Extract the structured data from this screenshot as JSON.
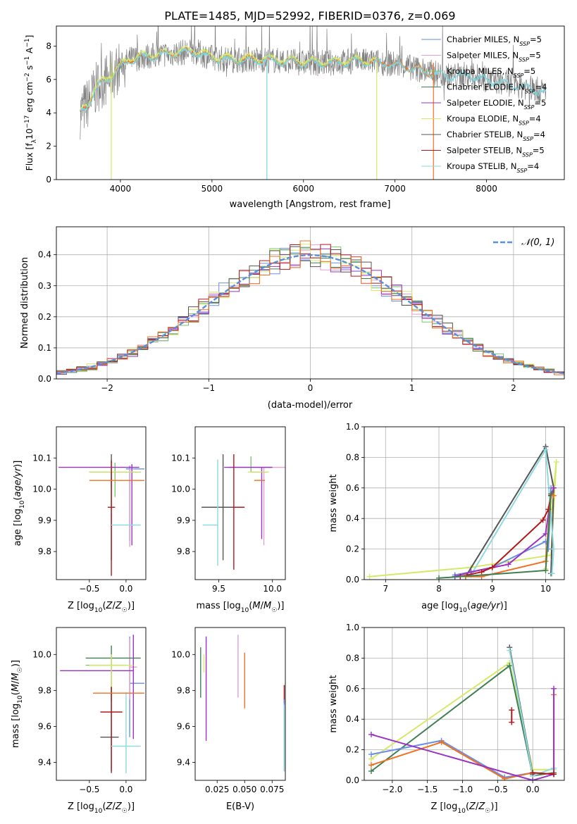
{
  "figure_title": "PLATE=1485, MJD=52992, FIBERID=0376, z=0.069",
  "model_colors": {
    "Chabrier MILES": "#6a8fe8",
    "Salpeter MILES": "#e0a0d8",
    "Kroupa MILES": "#7fc66f",
    "Chabrier ELODIE": "#3f7f54",
    "Salpeter ELODIE": "#9a33c4",
    "Kroupa ELODIE": "#d6e86a",
    "Chabrier STELIB": "#555555",
    "Salpeter STELIB": "#b3171b",
    "Kroupa STELIB": "#8fd9e0",
    "data": "#808080",
    "fit_orange": "#f07020",
    "fit_cyan": "#7fd4dc"
  },
  "chart_data": [
    {
      "id": "spectrum",
      "type": "line",
      "xlabel": "wavelength [Angstrom, rest frame]",
      "ylabel": "Flux [f_λ10^-17 erg cm^-2 s^-1 A^-1]",
      "xlim": [
        3300,
        8850
      ],
      "ylim": [
        0,
        9.2
      ],
      "xticks": [
        4000,
        5000,
        6000,
        7000,
        8000
      ],
      "yticks": [
        0,
        2,
        4,
        6,
        8
      ],
      "legend_position": "right",
      "legend": [
        "Chabrier MILES, N_SSP=5",
        "Salpeter MILES, N_SSP=5",
        "Kroupa MILES, N_SSP=5",
        "Chabrier ELODIE, N_SSP=4",
        "Salpeter ELODIE, N_SSP=5",
        "Kroupa ELODIE, N_SSP=4",
        "Chabrier STELIB, N_SSP=4",
        "Salpeter STELIB, N_SSP=5",
        "Kroupa STELIB, N_SSP=4"
      ],
      "continuum": {
        "x": [
          3560,
          3650,
          3750,
          3900,
          4000,
          4100,
          4300,
          4500,
          4800,
          5000,
          5200,
          5500,
          5800,
          6000,
          6300,
          6600,
          6900,
          7200,
          7400,
          7600,
          7800,
          8000,
          8200,
          8400,
          8600
        ],
        "y": [
          4.0,
          4.6,
          5.6,
          6.2,
          6.8,
          7.2,
          7.4,
          7.5,
          7.7,
          7.3,
          7.2,
          7.2,
          7.1,
          7.0,
          7.0,
          7.1,
          7.0,
          6.7,
          6.4,
          6.2,
          6.3,
          6.0,
          5.8,
          5.6,
          5.3
        ]
      }
    },
    {
      "id": "residuals",
      "type": "line",
      "xlabel": "(data-model)/error",
      "ylabel": "Normed distribution",
      "xlim": [
        -2.5,
        2.5
      ],
      "ylim": [
        0,
        0.49
      ],
      "xticks": [
        -2,
        -1,
        0,
        1,
        2
      ],
      "yticks": [
        0.0,
        0.1,
        0.2,
        0.3,
        0.4
      ],
      "grid": true,
      "legend_position": "top-right",
      "legend": [
        "𝒩(0, 1)"
      ],
      "reference": "standard normal density"
    },
    {
      "id": "z-age",
      "type": "scatter",
      "xlabel": "Z [log10(Z/Z☉)]",
      "ylabel": "age  [log10(age/yr)]",
      "xlim": [
        -0.95,
        0.27
      ],
      "ylim": [
        9.71,
        10.2
      ],
      "xticks": [
        -0.5,
        0.0
      ],
      "yticks": [
        9.8,
        9.9,
        10.0,
        10.1
      ],
      "points": [
        {
          "model": "Chabrier MILES",
          "x": 0.05,
          "y": 10.065,
          "xerr": [
            0.05,
            0.2
          ],
          "yerr": [
            0.23,
            0.01
          ]
        },
        {
          "model": "Salpeter MILES",
          "x": 0.05,
          "y": 10.065,
          "xerr": [
            0.0,
            0.05
          ],
          "yerr": [
            0.25,
            0.0
          ]
        },
        {
          "model": "Kroupa MILES",
          "x": -0.15,
          "y": 10.055,
          "xerr": [
            0.35,
            0.35
          ],
          "yerr": [
            0.08,
            0.03
          ]
        },
        {
          "model": "Chabrier ELODIE",
          "x": -0.2,
          "y": 10.055,
          "xerr": [
            0.3,
            0.4
          ],
          "yerr": [
            0.05,
            0.0
          ]
        },
        {
          "model": "Salpeter ELODIE",
          "x": 0.08,
          "y": 10.07,
          "xerr": [
            1.0,
            0.1
          ],
          "yerr": [
            0.25,
            0.01
          ]
        },
        {
          "model": "Kroupa ELODIE",
          "x": -0.2,
          "y": 10.055,
          "xerr": [
            0.3,
            0.4
          ],
          "yerr": [
            0.1,
            0.04
          ]
        },
        {
          "model": "Chabrier STELIB",
          "x": -0.2,
          "y": 9.942,
          "xerr": [
            0.0,
            0.0
          ],
          "yerr": [
            0.17,
            0.17
          ]
        },
        {
          "model": "Salpeter STELIB",
          "x": -0.2,
          "y": 9.942,
          "xerr": [
            0.05,
            0.05
          ],
          "yerr": [
            0.22,
            0.15
          ]
        },
        {
          "model": "Kroupa STELIB",
          "x": 0.0,
          "y": 9.885,
          "xerr": [
            0.2,
            0.2
          ],
          "yerr": [
            0.0,
            0.0
          ]
        },
        {
          "model": "fit_orange",
          "x": 0.0,
          "y": 10.028,
          "xerr": [
            0.5,
            0.25
          ],
          "yerr": [
            0.0,
            0.0
          ]
        }
      ]
    },
    {
      "id": "mass-age",
      "type": "scatter",
      "xlabel": "mass [log10(M/M☉)]",
      "ylabel": "",
      "xlim": [
        9.28,
        10.12
      ],
      "ylim": [
        9.71,
        10.2
      ],
      "xticks": [
        9.5,
        10.0
      ],
      "yticks": [
        9.8,
        9.9,
        10.0,
        10.1
      ],
      "points": [
        {
          "model": "Chabrier MILES",
          "x": 9.84,
          "y": 10.07,
          "xerr": [
            0.25,
            0.15
          ],
          "yerr": [
            0.0,
            0.0
          ]
        },
        {
          "model": "Salpeter MILES",
          "x": 9.92,
          "y": 10.07,
          "xerr": [
            0.0,
            0.2
          ],
          "yerr": [
            0.25,
            0.0
          ]
        },
        {
          "model": "Kroupa MILES",
          "x": 9.8,
          "y": 10.055,
          "xerr": [
            0.0,
            0.1
          ],
          "yerr": [
            0.0,
            0.05
          ]
        },
        {
          "model": "Chabrier ELODIE",
          "x": 9.85,
          "y": 10.055,
          "xerr": [
            0.05,
            0.1
          ],
          "yerr": [
            0.0,
            0.0
          ]
        },
        {
          "model": "Salpeter ELODIE",
          "x": 9.9,
          "y": 10.07,
          "xerr": [
            0.35,
            0.1
          ],
          "yerr": [
            0.23,
            0.0
          ]
        },
        {
          "model": "Kroupa ELODIE",
          "x": 9.87,
          "y": 10.055,
          "xerr": [
            0.1,
            0.1
          ],
          "yerr": [
            0.0,
            0.0
          ]
        },
        {
          "model": "Chabrier STELIB",
          "x": 9.54,
          "y": 9.942,
          "xerr": [
            0.2,
            0.2
          ],
          "yerr": [
            0.17,
            0.17
          ]
        },
        {
          "model": "Salpeter STELIB",
          "x": 9.64,
          "y": 9.942,
          "xerr": [
            0.0,
            0.1
          ],
          "yerr": [
            0.2,
            0.17
          ]
        },
        {
          "model": "Kroupa STELIB",
          "x": 9.49,
          "y": 9.885,
          "xerr": [
            0.14,
            0.0
          ],
          "yerr": [
            0.13,
            0.21
          ]
        },
        {
          "model": "fit_orange",
          "x": 9.83,
          "y": 10.028,
          "xerr": [
            0.0,
            0.1
          ],
          "yerr": [
            0.0,
            0.0
          ]
        }
      ]
    },
    {
      "id": "age-weight",
      "type": "line",
      "xlabel": "age  [log10(age/yr)]",
      "ylabel": "mass weight",
      "xlim": [
        6.6,
        10.35
      ],
      "ylim": [
        0,
        1.0
      ],
      "xticks": [
        7,
        8,
        9,
        10
      ],
      "yticks": [
        0.0,
        0.2,
        0.4,
        0.6,
        0.8,
        1.0
      ],
      "grid": true,
      "series": [
        {
          "model": "Kroupa ELODIE",
          "x": [
            6.7,
            8.6,
            10.1,
            10.2,
            10.0
          ],
          "y": [
            0.02,
            0.08,
            0.16,
            0.77,
            0.07
          ]
        },
        {
          "model": "Chabrier STELIB",
          "x": [
            8.5,
            10.0,
            10.15,
            10.1
          ],
          "y": [
            0.02,
            0.87,
            0.6,
            0.04
          ]
        },
        {
          "model": "Kroupa STELIB",
          "x": [
            8.6,
            10.0,
            10.15,
            10.12
          ],
          "y": [
            0.03,
            0.85,
            0.2,
            0.04
          ]
        },
        {
          "model": "Chabrier MILES",
          "x": [
            8.3,
            8.6,
            9.0,
            10.0,
            10.05,
            10.1
          ],
          "y": [
            0.03,
            0.05,
            0.08,
            0.25,
            0.2,
            0.6
          ]
        },
        {
          "model": "Salpeter ELODIE",
          "x": [
            8.3,
            8.6,
            9.3,
            10.0,
            10.1,
            10.15
          ],
          "y": [
            0.02,
            0.05,
            0.1,
            0.3,
            0.55,
            0.6
          ]
        },
        {
          "model": "Salpeter STELIB",
          "x": [
            8.4,
            8.8,
            9.0,
            9.95,
            10.05,
            10.1
          ],
          "y": [
            0.02,
            0.05,
            0.08,
            0.39,
            0.46,
            0.55
          ]
        },
        {
          "model": "fit_orange",
          "x": [
            8.5,
            8.8,
            10.0,
            10.1,
            10.15
          ],
          "y": [
            0.02,
            0.02,
            0.12,
            0.56,
            0.55
          ]
        },
        {
          "model": "Chabrier ELODIE",
          "x": [
            8.0,
            10.0,
            10.1
          ],
          "y": [
            0.01,
            0.06,
            0.56
          ]
        }
      ]
    },
    {
      "id": "z-mass",
      "type": "scatter",
      "xlabel": "Z [log10(Z/Z☉)]",
      "ylabel": "mass [log10(M/M☉)]",
      "xlim": [
        -0.95,
        0.27
      ],
      "ylim": [
        9.3,
        10.15
      ],
      "xticks": [
        -0.5,
        0.0
      ],
      "yticks": [
        9.4,
        9.6,
        9.8,
        10.0
      ],
      "points": [
        {
          "model": "Chabrier MILES",
          "x": 0.05,
          "y": 9.84,
          "xerr": [
            0.0,
            0.2
          ],
          "yerr": [
            0.3,
            0.26
          ]
        },
        {
          "model": "Salpeter MILES",
          "x": 0.05,
          "y": 9.93,
          "xerr": [
            0.0,
            0.1
          ],
          "yerr": [
            0.18,
            0.16
          ]
        },
        {
          "model": "Kroupa MILES",
          "x": -0.2,
          "y": 9.94,
          "xerr": [
            0.35,
            0.2
          ],
          "yerr": [
            0.0,
            0.0
          ]
        },
        {
          "model": "Chabrier ELODIE",
          "x": -0.2,
          "y": 9.98,
          "xerr": [
            0.35,
            0.4
          ],
          "yerr": [
            0.24,
            0.07
          ]
        },
        {
          "model": "Salpeter ELODIE",
          "x": 0.1,
          "y": 9.91,
          "xerr": [
            1.0,
            0.0
          ],
          "yerr": [
            0.38,
            0.2
          ]
        },
        {
          "model": "Kroupa ELODIE",
          "x": -0.2,
          "y": 9.94,
          "xerr": [
            0.3,
            0.3
          ],
          "yerr": [
            0.2,
            0.06
          ]
        },
        {
          "model": "Chabrier STELIB",
          "x": -0.2,
          "y": 9.54,
          "xerr": [
            0.15,
            0.1
          ],
          "yerr": [
            0.2,
            0.28
          ]
        },
        {
          "model": "Salpeter STELIB",
          "x": -0.2,
          "y": 9.68,
          "xerr": [
            0.15,
            0.15
          ],
          "yerr": [
            0.33,
            0.14
          ]
        },
        {
          "model": "Kroupa STELIB",
          "x": 0.0,
          "y": 9.49,
          "xerr": [
            0.2,
            0.2
          ],
          "yerr": [
            0.15,
            0.3
          ]
        },
        {
          "model": "fit_orange",
          "x": 0.0,
          "y": 9.785,
          "xerr": [
            0.45,
            0.25
          ],
          "yerr": [
            0.0,
            0.0
          ]
        }
      ]
    },
    {
      "id": "ebv-mass",
      "type": "scatter",
      "xlabel": "E(B-V)",
      "ylabel": "",
      "xlim": [
        0.005,
        0.087
      ],
      "ylim": [
        9.3,
        10.15
      ],
      "xticks": [
        0.025,
        0.05,
        0.075
      ],
      "xtick_labels": [
        "0.025",
        "0.050",
        "0.075"
      ],
      "yticks": [
        9.4,
        9.6,
        9.8,
        10.0
      ],
      "points": [
        {
          "model": "Chabrier ELODIE",
          "x": 0.01,
          "y": 9.9,
          "yerr": [
            0.14,
            0.14
          ]
        },
        {
          "model": "Kroupa ELODIE",
          "x": 0.013,
          "y": 9.9,
          "yerr": [
            0.0,
            0.1
          ]
        },
        {
          "model": "Salpeter ELODIE",
          "x": 0.015,
          "y": 9.8,
          "yerr": [
            0.28,
            0.3
          ]
        },
        {
          "model": "Salpeter MILES",
          "x": 0.044,
          "y": 9.92,
          "yerr": [
            0.16,
            0.19
          ]
        },
        {
          "model": "fit_orange",
          "x": 0.05,
          "y": 9.85,
          "yerr": [
            0.15,
            0.16
          ]
        },
        {
          "model": "Salpeter STELIB",
          "x": 0.086,
          "y": 9.73,
          "yerr": [
            0.0,
            0.1
          ]
        },
        {
          "model": "Chabrier MILES",
          "x": 0.086,
          "y": 9.55,
          "yerr": [
            0.2,
            0.2
          ]
        },
        {
          "model": "Kroupa STELIB",
          "x": 0.086,
          "y": 9.55,
          "yerr": [
            0.2,
            0.17
          ]
        }
      ]
    },
    {
      "id": "z-weight",
      "type": "line",
      "xlabel": "Z [log10(Z/Z☉)]",
      "ylabel": "mass weight",
      "xlim": [
        -2.4,
        0.45
      ],
      "ylim": [
        0,
        1.0
      ],
      "xticks": [
        -2.0,
        -1.5,
        -1.0,
        -0.5,
        0.0
      ],
      "yticks": [
        0.0,
        0.2,
        0.4,
        0.6,
        0.8,
        1.0
      ],
      "grid": true,
      "series": [
        {
          "model": "Kroupa ELODIE",
          "x": [
            -2.3,
            -0.33,
            0.0,
            0.3
          ],
          "y": [
            0.14,
            0.77,
            0.07,
            0.07
          ]
        },
        {
          "model": "Chabrier ELODIE",
          "x": [
            -2.3,
            -0.33,
            0.0,
            0.3
          ],
          "y": [
            0.06,
            0.75,
            0.03,
            0.05
          ]
        },
        {
          "model": "Chabrier STELIB",
          "x": [
            -0.33,
            0.0
          ],
          "y": [
            0.87,
            0.04
          ]
        },
        {
          "model": "Kroupa STELIB",
          "x": [
            -0.33,
            0.0,
            0.3
          ],
          "y": [
            0.85,
            0.03,
            0.08
          ]
        },
        {
          "model": "Chabrier MILES",
          "x": [
            -2.3,
            -1.3,
            -0.4,
            0.0
          ],
          "y": [
            0.17,
            0.26,
            0.02,
            0.05
          ]
        },
        {
          "model": "fit_orange",
          "x": [
            -2.3,
            -1.3,
            -0.4,
            0.0,
            0.3,
            0.3
          ],
          "y": [
            0.1,
            0.25,
            0.01,
            0.05,
            0.04,
            0.56
          ]
        },
        {
          "model": "Salpeter ELODIE",
          "x": [
            -2.3,
            0.0,
            0.3,
            0.3
          ],
          "y": [
            0.3,
            0.0,
            0.04,
            0.6
          ]
        },
        {
          "model": "Salpeter STELIB",
          "x": [
            -0.3,
            -0.3
          ],
          "y": [
            0.38,
            0.46
          ]
        },
        {
          "model": "Salpeter STELIB",
          "x": [
            0.0,
            0.3
          ],
          "y": [
            0.05,
            0.04
          ]
        }
      ]
    }
  ]
}
